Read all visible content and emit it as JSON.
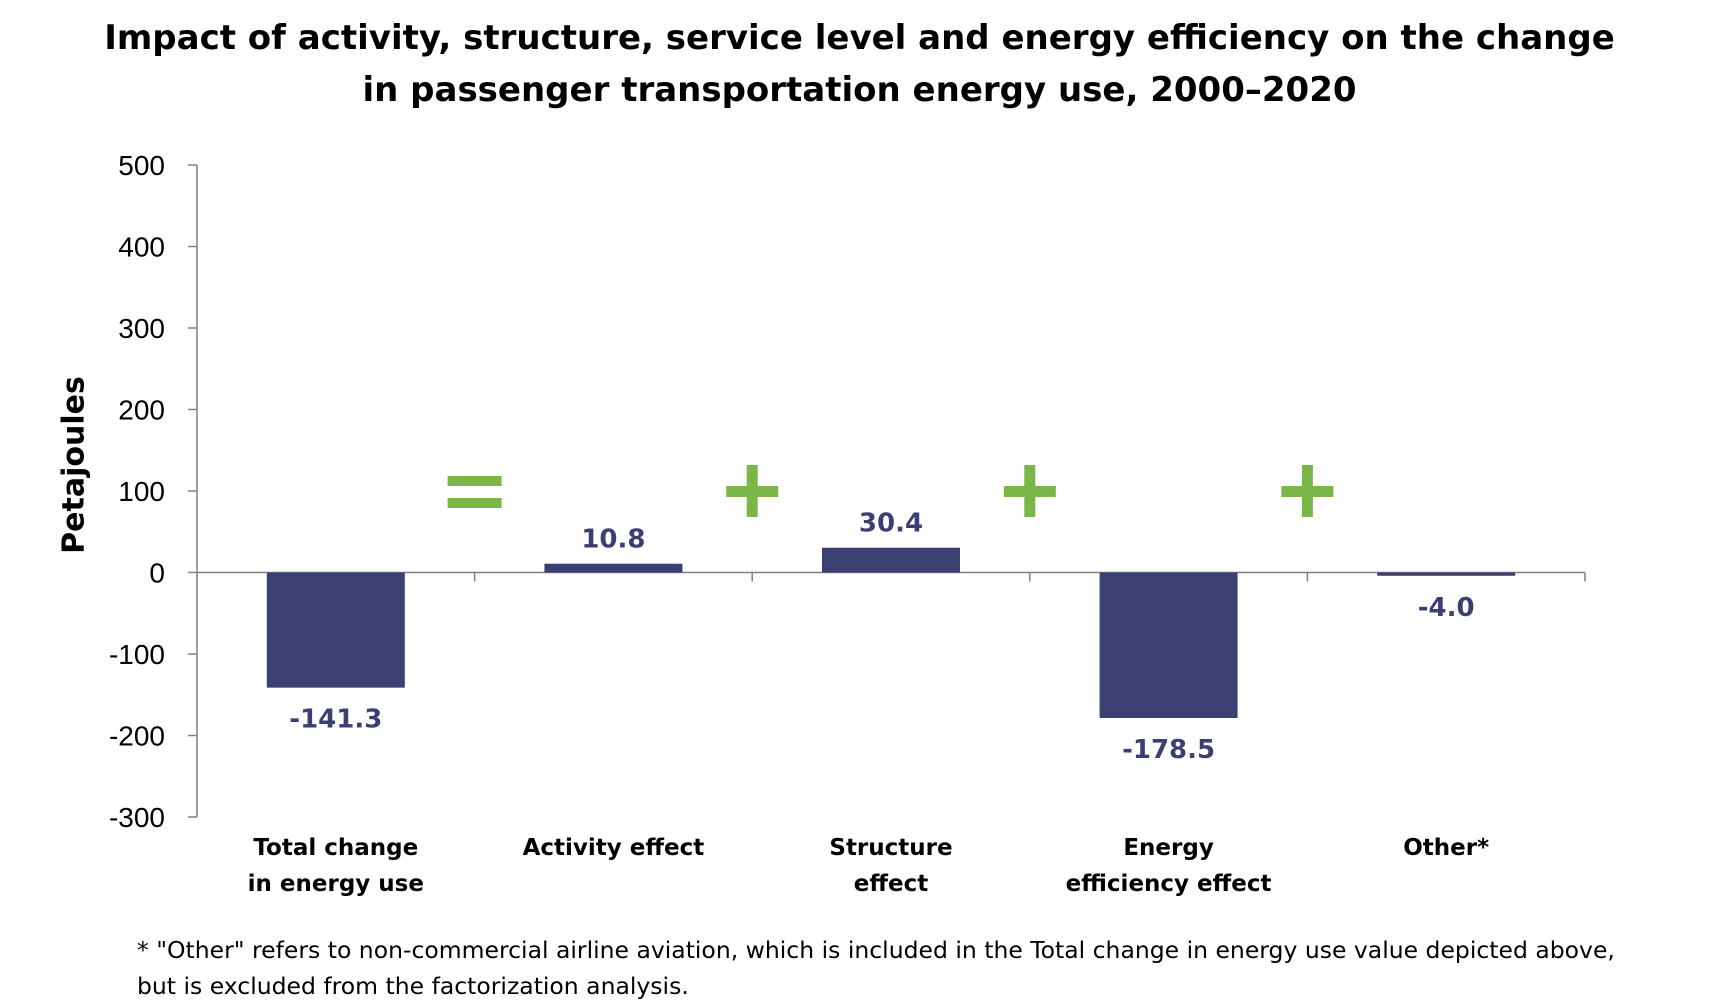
{
  "chart_data": {
    "type": "bar",
    "title": [
      "Impact of activity, structure, service level and energy efficiency on the change",
      "in passenger transportation energy use, 2000–2020"
    ],
    "ylabel": "Petajoules",
    "xlabel": "",
    "ylim": [
      -300,
      500
    ],
    "yticks": [
      500,
      400,
      300,
      200,
      100,
      0,
      -100,
      -200,
      -300
    ],
    "categories": [
      [
        "Total change",
        "in energy use"
      ],
      [
        "Activity effect"
      ],
      [
        "Structure",
        "effect"
      ],
      [
        "Energy",
        "efficiency effect"
      ],
      [
        "Other*"
      ]
    ],
    "values": [
      -141.3,
      10.8,
      30.4,
      -178.5,
      -4.0
    ],
    "data_labels": [
      "-141.3",
      "10.8",
      "30.4",
      "-178.5",
      "-4.0"
    ],
    "operators": [
      "=",
      "+",
      "+",
      "+"
    ],
    "grid": false,
    "legend": "none",
    "colors": {
      "bar": "#3c3f73",
      "data_label": "#3c3f73",
      "operator": "#7ab648",
      "axis": "#808080"
    }
  },
  "footnote": [
    "* \"Other\" refers to non-commercial airline aviation, which is included in the Total change in energy use value depicted above,",
    "but is excluded from the factorization analysis."
  ]
}
